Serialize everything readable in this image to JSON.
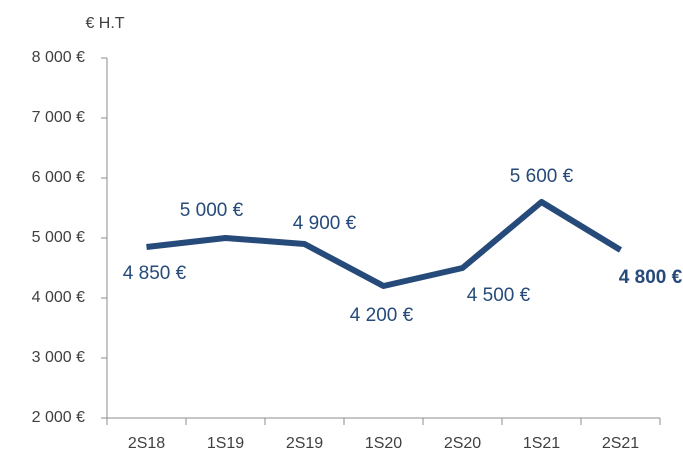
{
  "chart_data": {
    "type": "line",
    "y_axis_label": "€ H.T",
    "categories": [
      "2S18",
      "1S19",
      "2S19",
      "1S20",
      "2S20",
      "1S21",
      "2S21"
    ],
    "series": [
      {
        "name": null,
        "color": "#264a7a",
        "values": [
          4850,
          5000,
          4900,
          4200,
          4500,
          5600,
          4800
        ],
        "value_labels": [
          "4 850 €",
          "5 000 €",
          "4 900 €",
          "4 200 €",
          "4 500 €",
          "5 600 €",
          "4 800 €"
        ]
      }
    ],
    "ylim": [
      2000,
      8000
    ],
    "yticks": [
      {
        "value": 2000,
        "label": "2 000 €"
      },
      {
        "value": 3000,
        "label": "3 000 €"
      },
      {
        "value": 4000,
        "label": "4 000 €"
      },
      {
        "value": 5000,
        "label": "5 000 €"
      },
      {
        "value": 6000,
        "label": "6 000 €"
      },
      {
        "value": 7000,
        "label": "7 000 €"
      },
      {
        "value": 8000,
        "label": "8 000 €"
      }
    ],
    "grid": false
  }
}
